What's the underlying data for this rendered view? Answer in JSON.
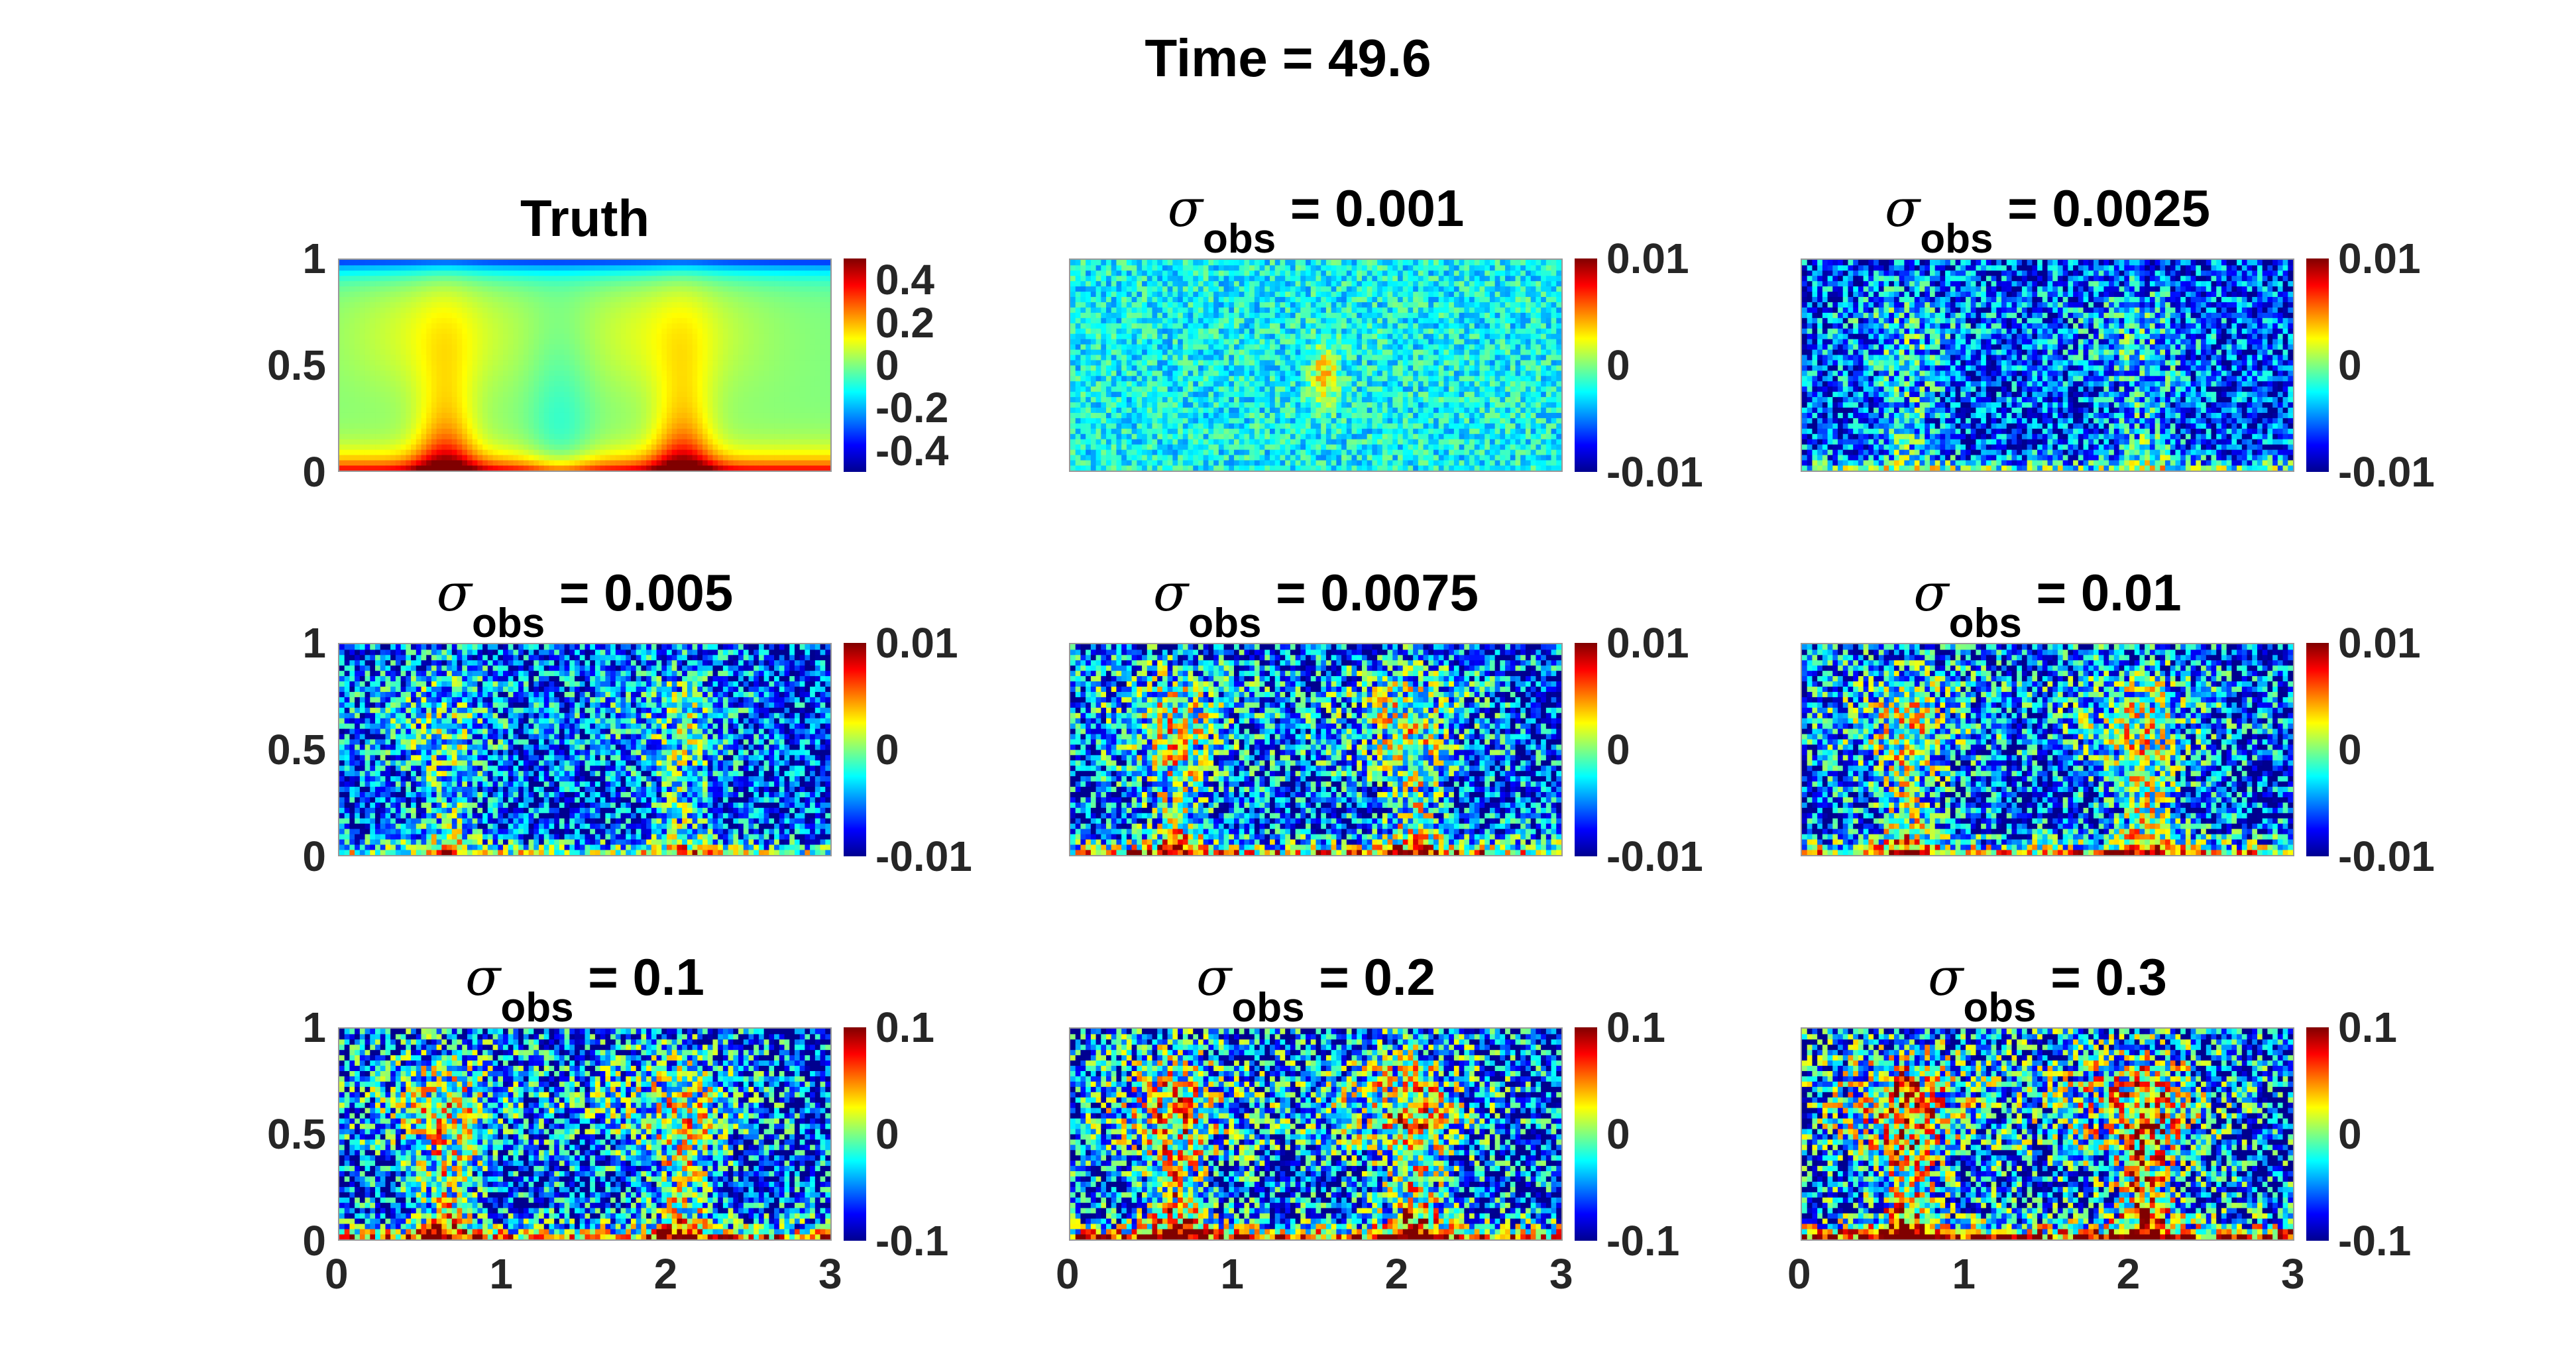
{
  "figure_title": "Time = 49.6",
  "chart_data": [
    {
      "type": "heatmap",
      "title": "Truth",
      "title_sigma": false,
      "xlim": [
        0,
        3
      ],
      "ylim": [
        0,
        1
      ],
      "clim": [
        -0.5,
        0.5
      ],
      "xticks": [],
      "yticks": [
        "1",
        "0.5",
        "0"
      ],
      "colorbar_ticks": [
        {
          "value": 0.4,
          "label": "0.4"
        },
        {
          "value": 0.2,
          "label": "0.2"
        },
        {
          "value": 0,
          "label": "0"
        },
        {
          "value": -0.2,
          "label": "-0.2"
        },
        {
          "value": -0.4,
          "label": "-0.4"
        }
      ],
      "field": "smooth-plumes"
    },
    {
      "type": "heatmap",
      "title_sigma": true,
      "sigma_symbol": "σ",
      "sigma_subscript": "obs",
      "title_value": "= 0.001",
      "xlim": [
        0,
        3
      ],
      "ylim": [
        0,
        1
      ],
      "clim": [
        -0.01,
        0.01
      ],
      "xticks": [],
      "yticks": [],
      "colorbar_ticks": [
        {
          "value": 0.01,
          "label": "0.01"
        },
        {
          "value": 0,
          "label": "0"
        },
        {
          "value": -0.01,
          "label": "-0.01"
        }
      ],
      "field": "low-noise"
    },
    {
      "type": "heatmap",
      "title_sigma": true,
      "sigma_symbol": "σ",
      "sigma_subscript": "obs",
      "title_value": "= 0.0025",
      "xlim": [
        0,
        3
      ],
      "ylim": [
        0,
        1
      ],
      "clim": [
        -0.01,
        0.01
      ],
      "xticks": [],
      "yticks": [],
      "colorbar_ticks": [
        {
          "value": 0.01,
          "label": "0.01"
        },
        {
          "value": 0,
          "label": "0"
        },
        {
          "value": -0.01,
          "label": "-0.01"
        }
      ],
      "field": "noisy-1"
    },
    {
      "type": "heatmap",
      "title_sigma": true,
      "sigma_symbol": "σ",
      "sigma_subscript": "obs",
      "title_value": "= 0.005",
      "xlim": [
        0,
        3
      ],
      "ylim": [
        0,
        1
      ],
      "clim": [
        -0.01,
        0.01
      ],
      "xticks": [],
      "yticks": [
        "1",
        "0.5",
        "0"
      ],
      "colorbar_ticks": [
        {
          "value": 0.01,
          "label": "0.01"
        },
        {
          "value": 0,
          "label": "0"
        },
        {
          "value": -0.01,
          "label": "-0.01"
        }
      ],
      "field": "noisy-2"
    },
    {
      "type": "heatmap",
      "title_sigma": true,
      "sigma_symbol": "σ",
      "sigma_subscript": "obs",
      "title_value": "= 0.0075",
      "xlim": [
        0,
        3
      ],
      "ylim": [
        0,
        1
      ],
      "clim": [
        -0.01,
        0.01
      ],
      "xticks": [],
      "yticks": [],
      "colorbar_ticks": [
        {
          "value": 0.01,
          "label": "0.01"
        },
        {
          "value": 0,
          "label": "0"
        },
        {
          "value": -0.01,
          "label": "-0.01"
        }
      ],
      "field": "noisy-3"
    },
    {
      "type": "heatmap",
      "title_sigma": true,
      "sigma_symbol": "σ",
      "sigma_subscript": "obs",
      "title_value": "= 0.01",
      "xlim": [
        0,
        3
      ],
      "ylim": [
        0,
        1
      ],
      "clim": [
        -0.01,
        0.01
      ],
      "xticks": [],
      "yticks": [],
      "colorbar_ticks": [
        {
          "value": 0.01,
          "label": "0.01"
        },
        {
          "value": 0,
          "label": "0"
        },
        {
          "value": -0.01,
          "label": "-0.01"
        }
      ],
      "field": "noisy-3"
    },
    {
      "type": "heatmap",
      "title_sigma": true,
      "sigma_symbol": "σ",
      "sigma_subscript": "obs",
      "title_value": "= 0.1",
      "xlim": [
        0,
        3
      ],
      "ylim": [
        0,
        1
      ],
      "clim": [
        -0.1,
        0.1
      ],
      "xticks": [
        "0",
        "1",
        "2",
        "3"
      ],
      "yticks": [
        "1",
        "0.5",
        "0"
      ],
      "colorbar_ticks": [
        {
          "value": 0.1,
          "label": "0.1"
        },
        {
          "value": 0,
          "label": "0"
        },
        {
          "value": -0.1,
          "label": "-0.1"
        }
      ],
      "field": "noisy-4"
    },
    {
      "type": "heatmap",
      "title_sigma": true,
      "sigma_symbol": "σ",
      "sigma_subscript": "obs",
      "title_value": "= 0.2",
      "xlim": [
        0,
        3
      ],
      "ylim": [
        0,
        1
      ],
      "clim": [
        -0.1,
        0.1
      ],
      "xticks": [
        "0",
        "1",
        "2",
        "3"
      ],
      "yticks": [],
      "colorbar_ticks": [
        {
          "value": 0.1,
          "label": "0.1"
        },
        {
          "value": 0,
          "label": "0"
        },
        {
          "value": -0.1,
          "label": "-0.1"
        }
      ],
      "field": "noisy-5"
    },
    {
      "type": "heatmap",
      "title_sigma": true,
      "sigma_symbol": "σ",
      "sigma_subscript": "obs",
      "title_value": "= 0.3",
      "xlim": [
        0,
        3
      ],
      "ylim": [
        0,
        1
      ],
      "clim": [
        -0.1,
        0.1
      ],
      "xticks": [
        "0",
        "1",
        "2",
        "3"
      ],
      "yticks": [],
      "colorbar_ticks": [
        {
          "value": 0.1,
          "label": "0.1"
        },
        {
          "value": 0,
          "label": "0"
        },
        {
          "value": -0.1,
          "label": "-0.1"
        }
      ],
      "field": "noisy-6"
    }
  ]
}
